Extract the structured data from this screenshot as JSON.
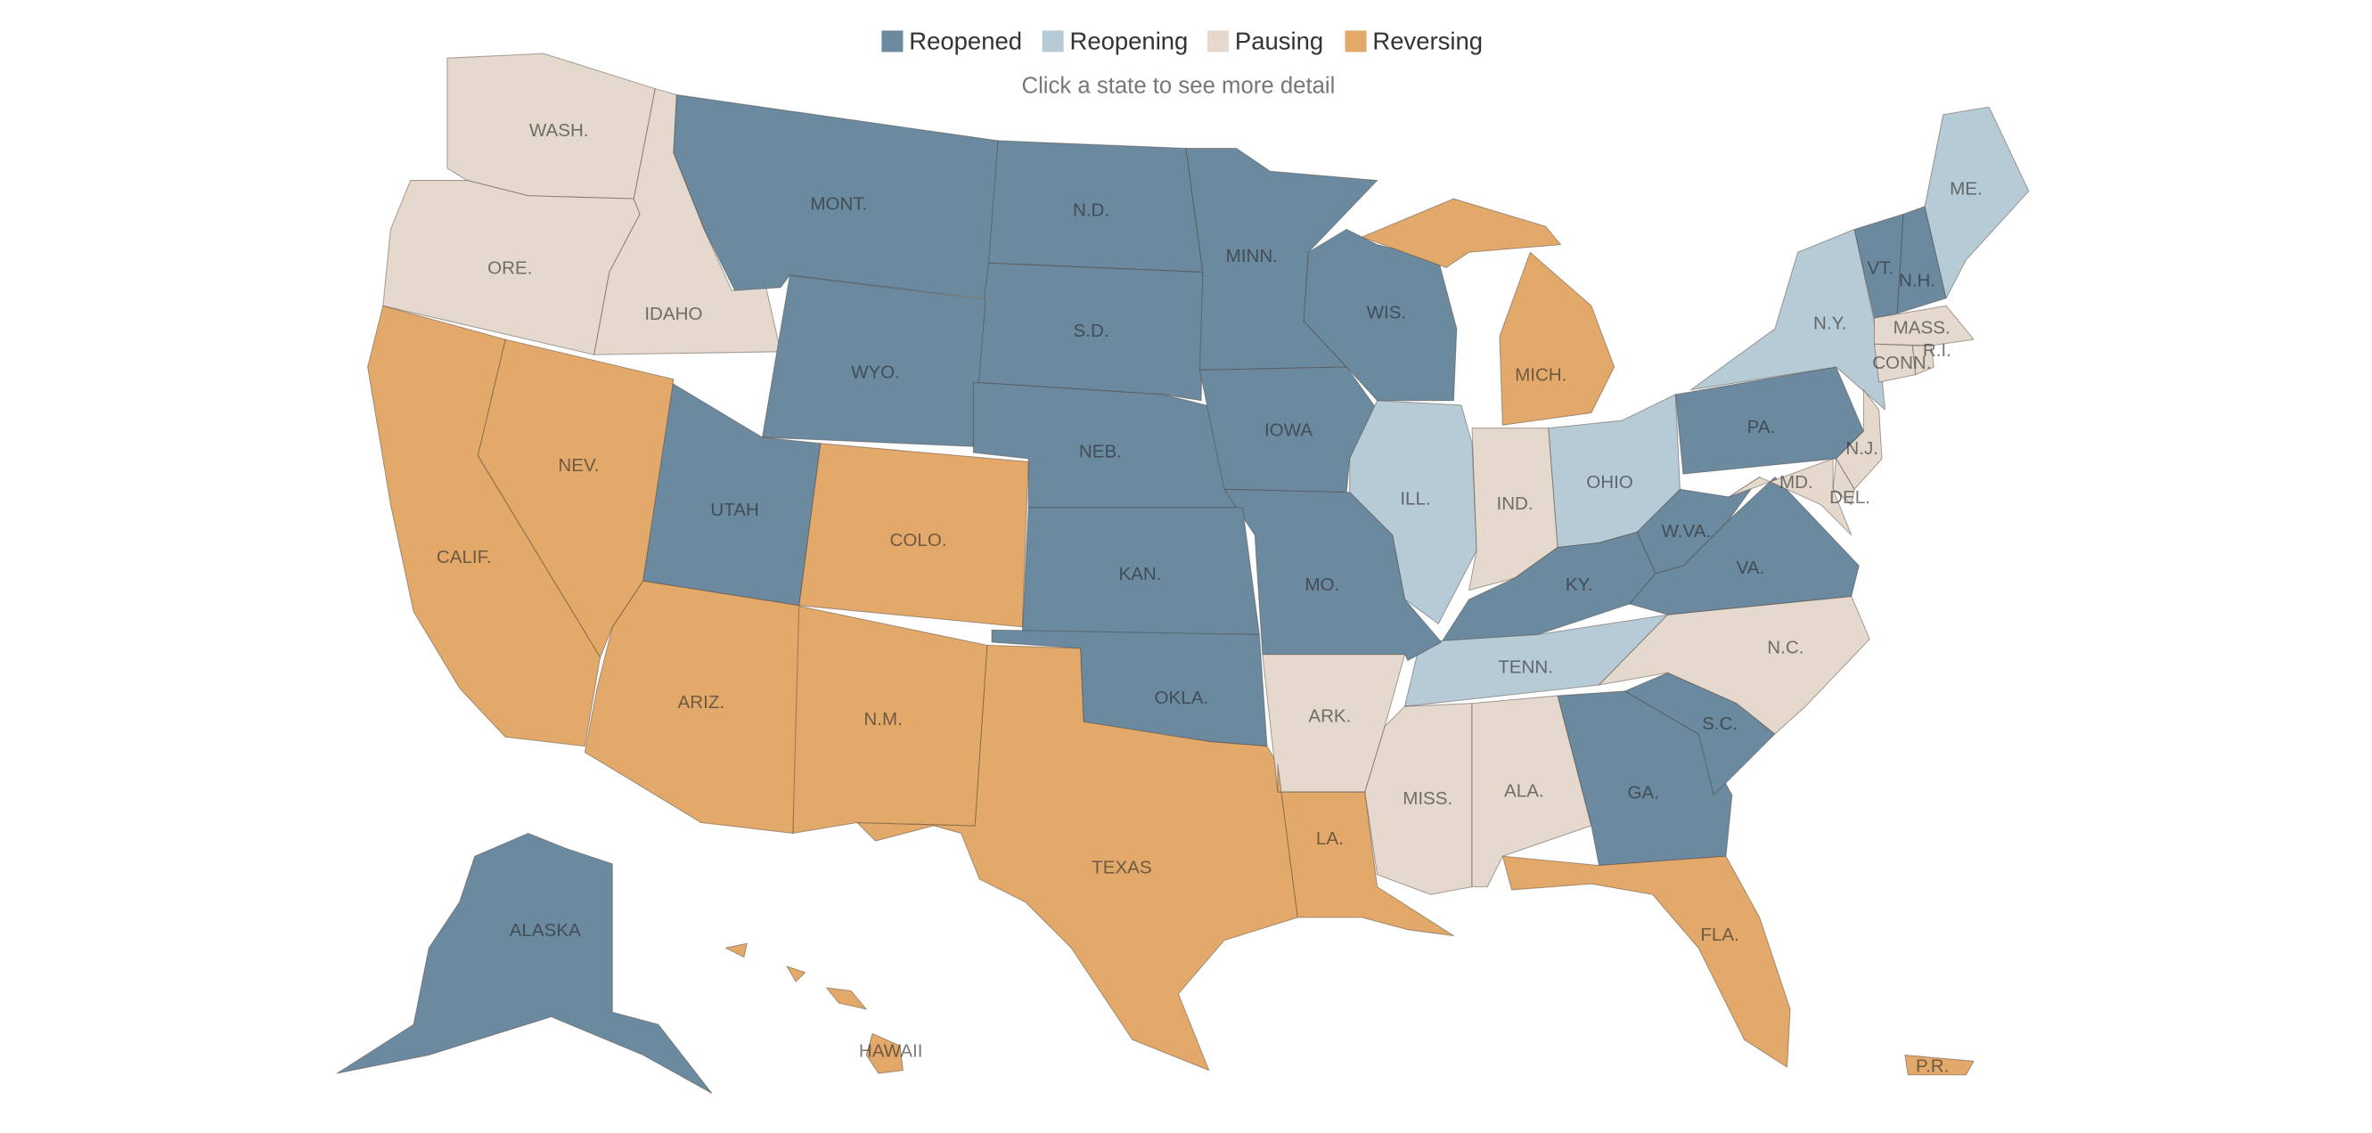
{
  "legend": [
    {
      "label": "Reopened",
      "color": "#6b8aa0"
    },
    {
      "label": "Reopening",
      "color": "#b7cbd6"
    },
    {
      "label": "Pausing",
      "color": "#e5d9ce"
    },
    {
      "label": "Reversing",
      "color": "#e2a96a"
    }
  ],
  "subtitle": "Click a state to see more detail",
  "states": [
    {
      "label": "WASH.",
      "status": "Pausing"
    },
    {
      "label": "ORE.",
      "status": "Pausing"
    },
    {
      "label": "IDAHO",
      "status": "Pausing"
    },
    {
      "label": "MONT.",
      "status": "Reopened"
    },
    {
      "label": "N.D.",
      "status": "Reopened"
    },
    {
      "label": "S.D.",
      "status": "Reopened"
    },
    {
      "label": "WYO.",
      "status": "Reopened"
    },
    {
      "label": "NEB.",
      "status": "Reopened"
    },
    {
      "label": "MINN.",
      "status": "Reopened"
    },
    {
      "label": "IOWA",
      "status": "Reopened"
    },
    {
      "label": "WIS.",
      "status": "Reopened"
    },
    {
      "label": "MICH.",
      "status": "Reversing"
    },
    {
      "label": "ILL.",
      "status": "Reopening"
    },
    {
      "label": "IND.",
      "status": "Pausing"
    },
    {
      "label": "OHIO",
      "status": "Reopening"
    },
    {
      "label": "KY.",
      "status": "Reopened"
    },
    {
      "label": "TENN.",
      "status": "Reopening"
    },
    {
      "label": "MO.",
      "status": "Reopened"
    },
    {
      "label": "KAN.",
      "status": "Reopened"
    },
    {
      "label": "OKLA.",
      "status": "Reopened"
    },
    {
      "label": "TEXAS",
      "status": "Reversing"
    },
    {
      "label": "N.M.",
      "status": "Reversing"
    },
    {
      "label": "COLO.",
      "status": "Reversing"
    },
    {
      "label": "UTAH",
      "status": "Reopened"
    },
    {
      "label": "ARIZ.",
      "status": "Reversing"
    },
    {
      "label": "NEV.",
      "status": "Reversing"
    },
    {
      "label": "CALIF.",
      "status": "Reversing"
    },
    {
      "label": "ARK.",
      "status": "Pausing"
    },
    {
      "label": "LA.",
      "status": "Reversing"
    },
    {
      "label": "MISS.",
      "status": "Pausing"
    },
    {
      "label": "ALA.",
      "status": "Pausing"
    },
    {
      "label": "GA.",
      "status": "Reopened"
    },
    {
      "label": "FLA.",
      "status": "Reversing"
    },
    {
      "label": "S.C.",
      "status": "Reopened"
    },
    {
      "label": "N.C.",
      "status": "Pausing"
    },
    {
      "label": "VA.",
      "status": "Reopened"
    },
    {
      "label": "W.VA.",
      "status": "Reopened"
    },
    {
      "label": "PA.",
      "status": "Reopened"
    },
    {
      "label": "N.Y.",
      "status": "Reopening"
    },
    {
      "label": "VT.",
      "status": "Reopened"
    },
    {
      "label": "N.H.",
      "status": "Reopened"
    },
    {
      "label": "ME.",
      "status": "Reopening"
    },
    {
      "label": "MASS.",
      "status": "Pausing"
    },
    {
      "label": "CONN.",
      "status": "Pausing"
    },
    {
      "label": "R.I.",
      "status": "Pausing"
    },
    {
      "label": "N.J.",
      "status": "Pausing"
    },
    {
      "label": "DEL.",
      "status": "Pausing"
    },
    {
      "label": "MD.",
      "status": "Pausing"
    },
    {
      "label": "ALASKA",
      "status": "Reopened"
    },
    {
      "label": "HAWAII",
      "status": "Reversing"
    },
    {
      "label": "P.R.",
      "status": "Reversing"
    }
  ]
}
